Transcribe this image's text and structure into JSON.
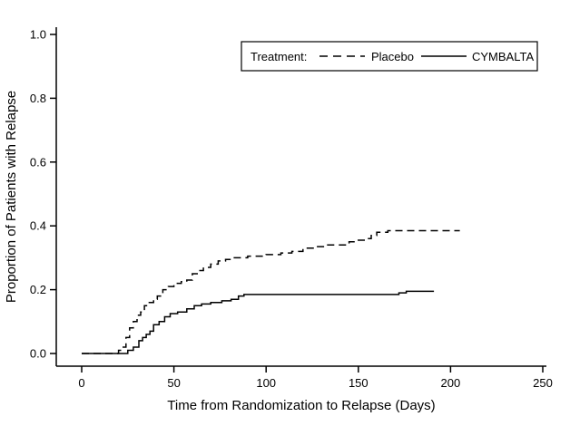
{
  "chart_data": {
    "type": "line",
    "subtype": "step",
    "title": "",
    "xlabel": "Time from Randomization to Relapse (Days)",
    "ylabel": "Proportion of Patients with Relapse",
    "xlim": [
      0,
      250
    ],
    "ylim": [
      0,
      1.0
    ],
    "x_ticks": [
      0,
      50,
      100,
      150,
      200,
      250
    ],
    "y_ticks": [
      0.0,
      0.2,
      0.4,
      0.6,
      0.8,
      1.0
    ],
    "grid": false,
    "legend": {
      "position": "top-right-inside",
      "title": "Treatment:",
      "entries": [
        {
          "label": "Placebo",
          "line_style": "dashed"
        },
        {
          "label": "CYMBALTA",
          "line_style": "solid"
        }
      ]
    },
    "series": [
      {
        "name": "Placebo",
        "line_style": "dashed",
        "color": "#000000",
        "points": [
          [
            0,
            0
          ],
          [
            20,
            0.01
          ],
          [
            22,
            0.02
          ],
          [
            24,
            0.05
          ],
          [
            26,
            0.08
          ],
          [
            28,
            0.1
          ],
          [
            30,
            0.12
          ],
          [
            32,
            0.13
          ],
          [
            34,
            0.15
          ],
          [
            36,
            0.16
          ],
          [
            39,
            0.17
          ],
          [
            41,
            0.18
          ],
          [
            44,
            0.2
          ],
          [
            47,
            0.21
          ],
          [
            50,
            0.22
          ],
          [
            54,
            0.225
          ],
          [
            57,
            0.23
          ],
          [
            60,
            0.25
          ],
          [
            63,
            0.26
          ],
          [
            66,
            0.27
          ],
          [
            70,
            0.28
          ],
          [
            74,
            0.29
          ],
          [
            78,
            0.295
          ],
          [
            82,
            0.3
          ],
          [
            90,
            0.305
          ],
          [
            100,
            0.31
          ],
          [
            108,
            0.315
          ],
          [
            114,
            0.32
          ],
          [
            120,
            0.33
          ],
          [
            127,
            0.335
          ],
          [
            133,
            0.34
          ],
          [
            145,
            0.35
          ],
          [
            150,
            0.355
          ],
          [
            154,
            0.36
          ],
          [
            157,
            0.37
          ],
          [
            160,
            0.38
          ],
          [
            166,
            0.385
          ],
          [
            205,
            0.385
          ]
        ]
      },
      {
        "name": "CYMBALTA",
        "line_style": "solid",
        "color": "#000000",
        "points": [
          [
            0,
            0
          ],
          [
            25,
            0.01
          ],
          [
            28,
            0.02
          ],
          [
            31,
            0.04
          ],
          [
            33,
            0.05
          ],
          [
            35,
            0.06
          ],
          [
            37,
            0.07
          ],
          [
            39,
            0.09
          ],
          [
            42,
            0.1
          ],
          [
            45,
            0.115
          ],
          [
            48,
            0.125
          ],
          [
            52,
            0.13
          ],
          [
            57,
            0.14
          ],
          [
            61,
            0.15
          ],
          [
            65,
            0.155
          ],
          [
            70,
            0.16
          ],
          [
            76,
            0.165
          ],
          [
            81,
            0.17
          ],
          [
            85,
            0.18
          ],
          [
            88,
            0.185
          ],
          [
            172,
            0.19
          ],
          [
            176,
            0.195
          ],
          [
            191,
            0.195
          ]
        ]
      }
    ]
  },
  "colors": {
    "foreground": "#000000",
    "background": "#ffffff"
  }
}
